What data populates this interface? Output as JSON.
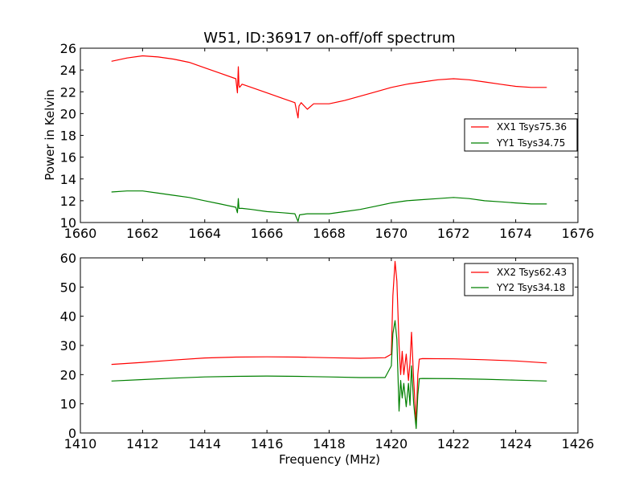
{
  "figure": {
    "title": "W51, ID:36917 on-off/off spectrum"
  },
  "chart_data": [
    {
      "type": "line",
      "title": "W51, ID:36917 on-off/off spectrum",
      "xlabel": "",
      "ylabel": "Power in Kelvin",
      "xlim": [
        1660,
        1676
      ],
      "ylim": [
        10,
        26
      ],
      "xticks": [
        1660,
        1662,
        1664,
        1666,
        1668,
        1670,
        1672,
        1674,
        1676
      ],
      "yticks": [
        10,
        12,
        14,
        16,
        18,
        20,
        22,
        24,
        26
      ],
      "grid": false,
      "legend_position": "center-right",
      "series": [
        {
          "name": "XX1 Tsys75.36",
          "color": "#ff0000",
          "x": [
            1661.0,
            1661.5,
            1662.0,
            1662.5,
            1663.0,
            1663.5,
            1664.0,
            1664.5,
            1665.0,
            1665.05,
            1665.08,
            1665.1,
            1665.12,
            1665.2,
            1665.5,
            1666.0,
            1666.5,
            1666.9,
            1667.0,
            1667.03,
            1667.1,
            1667.3,
            1667.5,
            1668.0,
            1668.5,
            1669.0,
            1669.5,
            1670.0,
            1670.5,
            1671.0,
            1671.5,
            1672.0,
            1672.5,
            1673.0,
            1673.5,
            1674.0,
            1674.5,
            1675.0
          ],
          "y": [
            24.8,
            25.1,
            25.3,
            25.2,
            25.0,
            24.7,
            24.2,
            23.7,
            23.2,
            21.9,
            24.3,
            22.6,
            22.4,
            22.7,
            22.4,
            21.9,
            21.4,
            21.0,
            19.6,
            20.7,
            21.0,
            20.4,
            20.9,
            20.9,
            21.2,
            21.6,
            22.0,
            22.4,
            22.7,
            22.9,
            23.1,
            23.2,
            23.1,
            22.9,
            22.7,
            22.5,
            22.4,
            22.4
          ]
        },
        {
          "name": "YY1 Tsys34.75",
          "color": "#008000",
          "x": [
            1661.0,
            1661.5,
            1662.0,
            1662.5,
            1663.0,
            1663.5,
            1664.0,
            1664.5,
            1665.0,
            1665.05,
            1665.08,
            1665.1,
            1665.2,
            1665.5,
            1666.0,
            1666.5,
            1666.9,
            1667.0,
            1667.05,
            1667.3,
            1668.0,
            1668.5,
            1669.0,
            1669.5,
            1670.0,
            1670.5,
            1671.0,
            1671.5,
            1672.0,
            1672.5,
            1673.0,
            1673.5,
            1674.0,
            1674.5,
            1675.0
          ],
          "y": [
            12.8,
            12.9,
            12.9,
            12.7,
            12.5,
            12.3,
            12.0,
            11.7,
            11.4,
            10.9,
            12.2,
            11.3,
            11.3,
            11.2,
            11.0,
            10.9,
            10.8,
            10.1,
            10.7,
            10.8,
            10.8,
            11.0,
            11.2,
            11.5,
            11.8,
            12.0,
            12.1,
            12.2,
            12.3,
            12.2,
            12.0,
            11.9,
            11.8,
            11.7,
            11.7
          ]
        }
      ]
    },
    {
      "type": "line",
      "title": "",
      "xlabel": "Frequency (MHz)",
      "ylabel": "",
      "xlim": [
        1410,
        1426
      ],
      "ylim": [
        0,
        60
      ],
      "xticks": [
        1410,
        1412,
        1414,
        1416,
        1418,
        1420,
        1422,
        1424,
        1426
      ],
      "yticks": [
        0,
        10,
        20,
        30,
        40,
        50,
        60
      ],
      "grid": false,
      "legend_position": "top-right",
      "series": [
        {
          "name": "XX2 Tsys62.43",
          "color": "#ff0000",
          "x": [
            1411.0,
            1412.0,
            1413.0,
            1414.0,
            1415.0,
            1416.0,
            1417.0,
            1418.0,
            1419.0,
            1419.8,
            1420.0,
            1420.05,
            1420.12,
            1420.18,
            1420.25,
            1420.3,
            1420.35,
            1420.4,
            1420.48,
            1420.55,
            1420.6,
            1420.65,
            1420.72,
            1420.8,
            1420.85,
            1420.9,
            1421.0,
            1422.0,
            1423.0,
            1424.0,
            1425.0
          ],
          "y": [
            23.5,
            24.2,
            25.0,
            25.7,
            26.0,
            26.1,
            26.0,
            25.8,
            25.6,
            25.8,
            27.0,
            47.0,
            58.8,
            52.0,
            30.0,
            20.0,
            28.0,
            20.0,
            27.0,
            18.0,
            24.0,
            34.5,
            18.0,
            3.5,
            20.0,
            25.3,
            25.5,
            25.4,
            25.1,
            24.7,
            24.0
          ]
        },
        {
          "name": "YY2 Tsys34.18",
          "color": "#008000",
          "x": [
            1411.0,
            1412.0,
            1413.0,
            1414.0,
            1415.0,
            1416.0,
            1417.0,
            1418.0,
            1419.0,
            1419.8,
            1420.0,
            1420.05,
            1420.12,
            1420.18,
            1420.25,
            1420.3,
            1420.35,
            1420.4,
            1420.48,
            1420.55,
            1420.6,
            1420.65,
            1420.72,
            1420.8,
            1420.85,
            1420.9,
            1421.0,
            1422.0,
            1423.0,
            1424.0,
            1425.0
          ],
          "y": [
            17.8,
            18.3,
            18.8,
            19.2,
            19.4,
            19.5,
            19.4,
            19.2,
            19.0,
            19.0,
            23.0,
            34.0,
            38.5,
            32.0,
            7.5,
            18.0,
            12.0,
            17.0,
            9.0,
            17.0,
            9.5,
            23.0,
            10.0,
            1.5,
            13.0,
            18.6,
            18.7,
            18.6,
            18.4,
            18.1,
            17.8
          ]
        }
      ]
    }
  ]
}
